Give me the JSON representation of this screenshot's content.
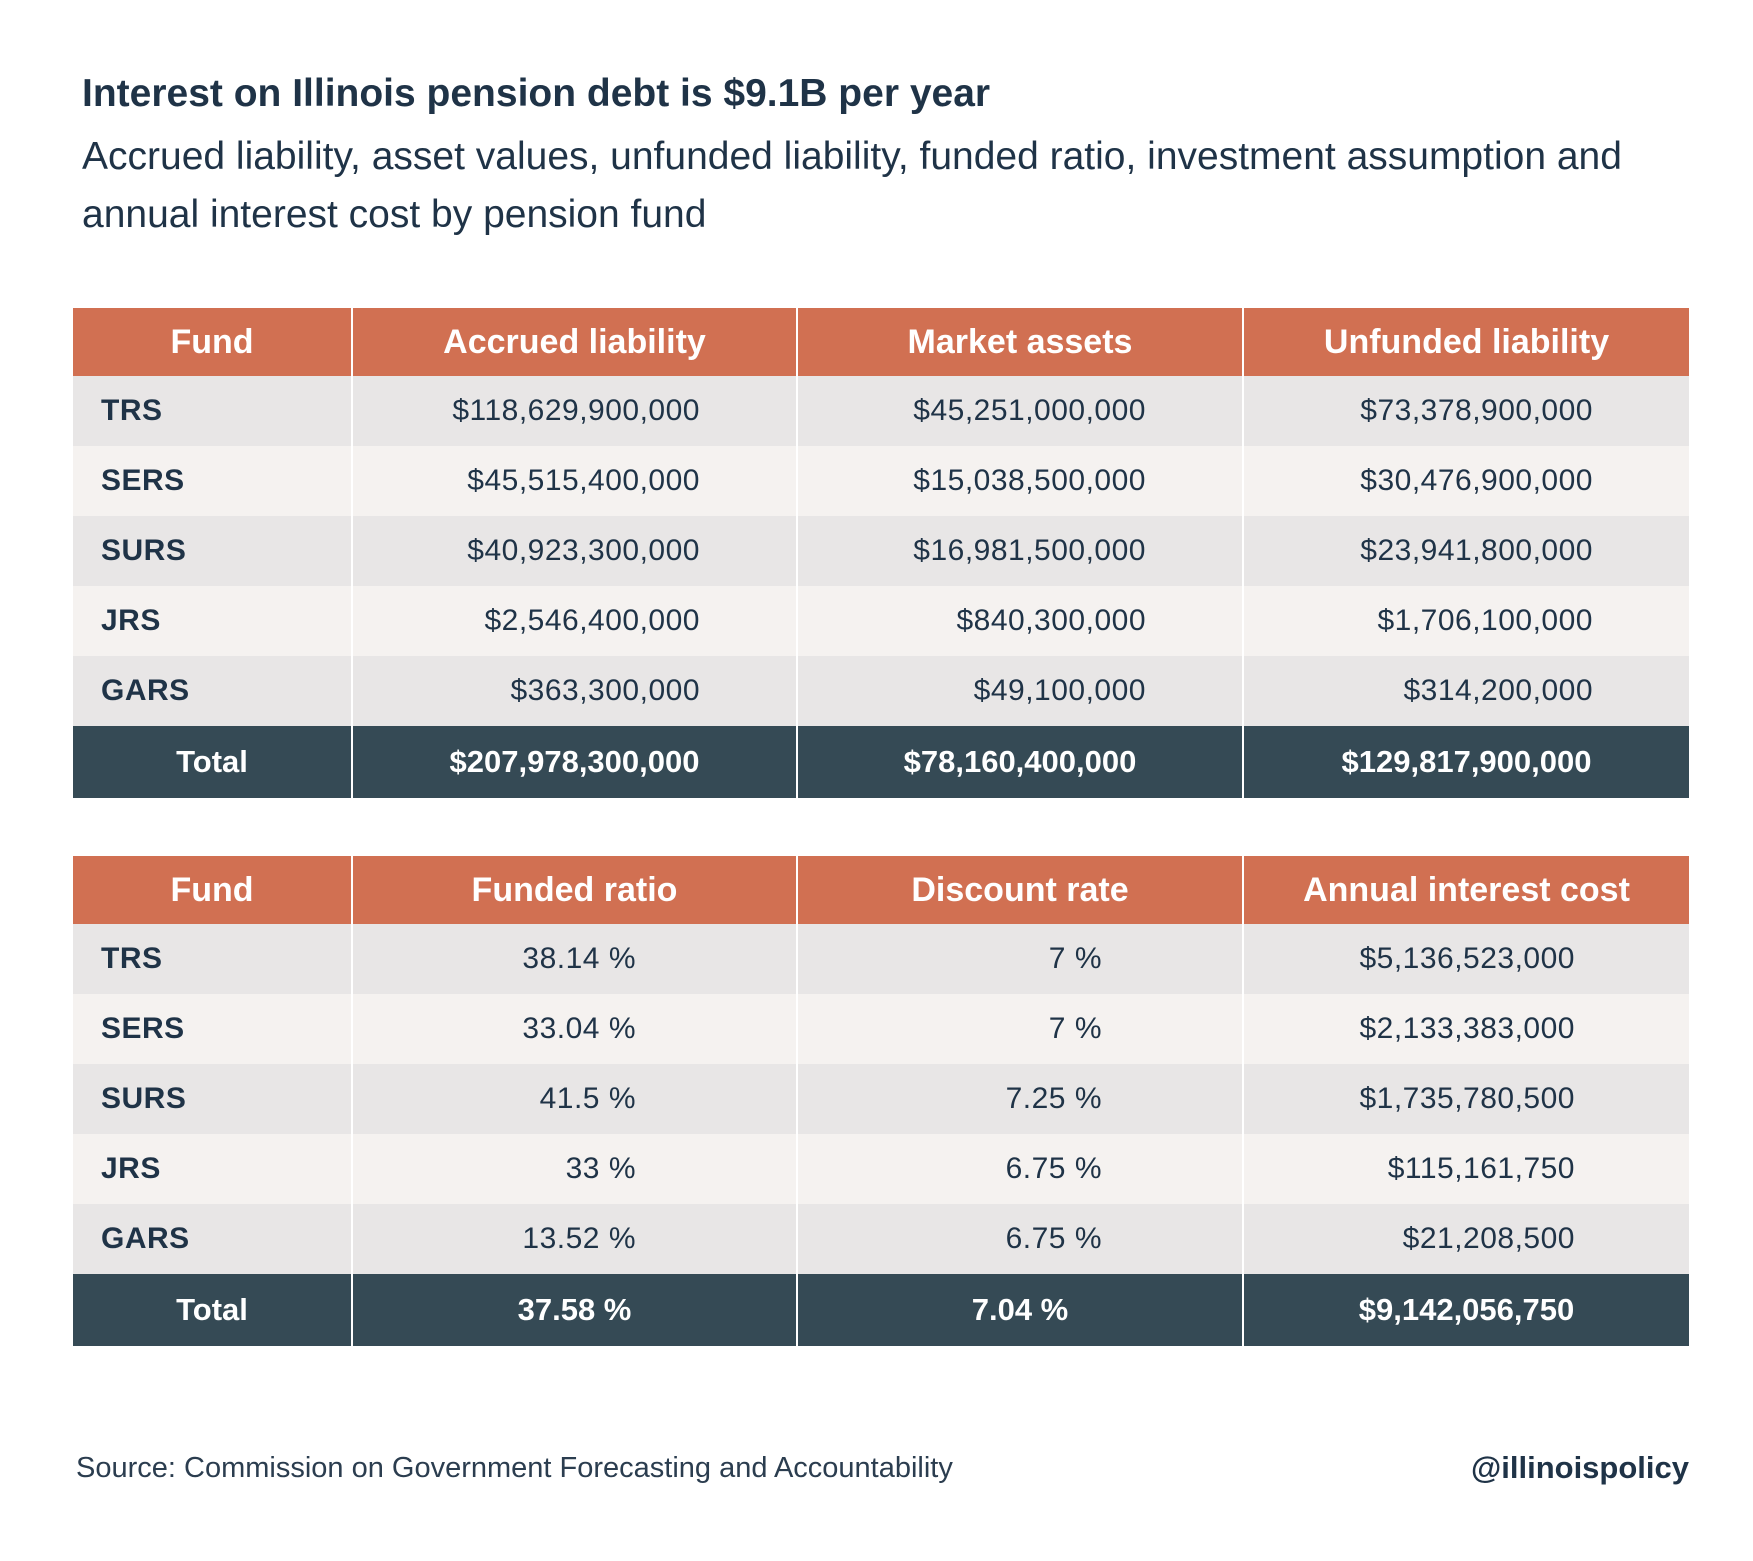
{
  "title": "Interest on Illinois pension debt is $9.1B per year",
  "subtitle": "Accrued liability, asset values, unfunded liability, funded ratio, investment assumption and annual interest cost by pension fund",
  "source": "Source: Commission on Government Forecasting and Accountability",
  "handle": "@illinoispolicy",
  "colors": {
    "header": "#d17052",
    "total_row": "#354a55",
    "row_shade_a": "#e8e6e6",
    "row_shade_b": "#f5f2f0",
    "text": "#1f3347"
  },
  "chart_data": [
    {
      "type": "table",
      "columns": [
        "Fund",
        "Accrued liability",
        "Market assets",
        "Unfunded liability"
      ],
      "rows": [
        [
          "TRS",
          "$118,629,900,000",
          "$45,251,000,000",
          "$73,378,900,000"
        ],
        [
          "SERS",
          "$45,515,400,000",
          "$15,038,500,000",
          "$30,476,900,000"
        ],
        [
          "SURS",
          "$40,923,300,000",
          "$16,981,500,000",
          "$23,941,800,000"
        ],
        [
          "JRS",
          "$2,546,400,000",
          "$840,300,000",
          "$1,706,100,000"
        ],
        [
          "GARS",
          "$363,300,000",
          "$49,100,000",
          "$314,200,000"
        ]
      ],
      "total": [
        "Total",
        "$207,978,300,000",
        "$78,160,400,000",
        "$129,817,900,000"
      ]
    },
    {
      "type": "table",
      "columns": [
        "Fund",
        "Funded ratio",
        "Discount rate",
        "Annual interest cost"
      ],
      "rows": [
        [
          "TRS",
          "38.14 %",
          "7 %",
          "$5,136,523,000"
        ],
        [
          "SERS",
          "33.04 %",
          "7 %",
          "$2,133,383,000"
        ],
        [
          "SURS",
          "41.5 %",
          "7.25 %",
          "$1,735,780,500"
        ],
        [
          "JRS",
          "33 %",
          "6.75 %",
          "$115,161,750"
        ],
        [
          "GARS",
          "13.52 %",
          "6.75 %",
          "$21,208,500"
        ]
      ],
      "total": [
        "Total",
        "37.58 %",
        "7.04 %",
        "$9,142,056,750"
      ]
    }
  ]
}
